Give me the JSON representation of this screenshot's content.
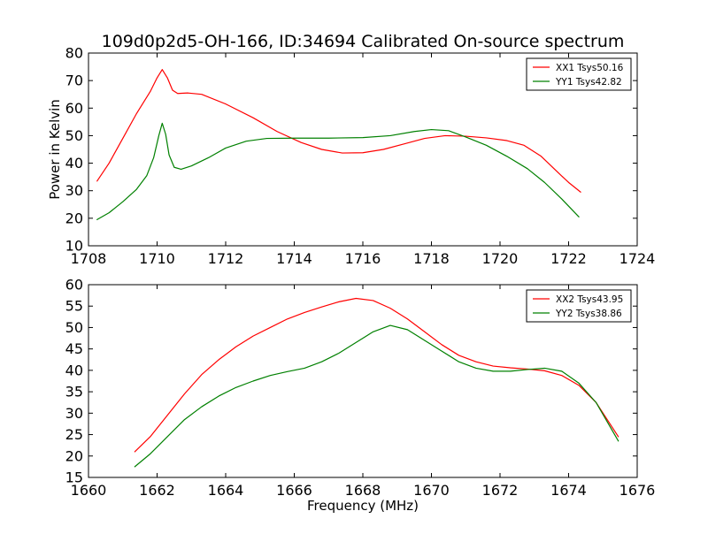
{
  "title": "109d0p2d5-OH-166, ID:34694 Calibrated On-source spectrum",
  "ylabel": "Power in Kelvin",
  "xlabel": "Frequency (MHz)",
  "colors": {
    "xx": "#ff0000",
    "yy": "#008000",
    "axis": "#000000"
  },
  "chart_data": [
    {
      "type": "line",
      "xlim": [
        1708,
        1724
      ],
      "ylim": [
        10,
        80
      ],
      "xticks": [
        1708,
        1710,
        1712,
        1714,
        1716,
        1718,
        1720,
        1722,
        1724
      ],
      "yticks": [
        10,
        20,
        30,
        40,
        50,
        60,
        70,
        80
      ],
      "ylabel": "Power in Kelvin",
      "xlabel": "",
      "legend_position": "top-right",
      "grid": false,
      "series": [
        {
          "name": "XX1 Tsys50.16",
          "color": "#ff0000",
          "x": [
            1708.25,
            1708.6,
            1709.0,
            1709.4,
            1709.8,
            1710.0,
            1710.15,
            1710.3,
            1710.45,
            1710.6,
            1710.9,
            1711.3,
            1712.0,
            1712.8,
            1713.5,
            1714.2,
            1714.8,
            1715.4,
            1716.0,
            1716.6,
            1717.2,
            1717.8,
            1718.4,
            1719.0,
            1719.6,
            1720.2,
            1720.7,
            1721.2,
            1721.7,
            1722.0,
            1722.35
          ],
          "y": [
            33.5,
            40.0,
            49.0,
            58.0,
            66.0,
            71.0,
            74.0,
            71.0,
            66.5,
            65.3,
            65.5,
            65.0,
            61.5,
            56.5,
            51.5,
            47.5,
            45.0,
            43.7,
            43.8,
            45.0,
            47.0,
            49.0,
            50.0,
            49.8,
            49.2,
            48.2,
            46.5,
            42.5,
            36.5,
            33.0,
            29.5
          ]
        },
        {
          "name": "YY1 Tsys42.82",
          "color": "#008000",
          "x": [
            1708.25,
            1708.6,
            1709.0,
            1709.4,
            1709.7,
            1709.9,
            1710.05,
            1710.15,
            1710.25,
            1710.35,
            1710.5,
            1710.7,
            1711.0,
            1711.5,
            1712.0,
            1712.6,
            1713.2,
            1714.0,
            1715.0,
            1716.0,
            1716.8,
            1717.5,
            1718.0,
            1718.5,
            1719.0,
            1719.6,
            1720.2,
            1720.8,
            1721.3,
            1721.8,
            1722.3
          ],
          "y": [
            19.5,
            22.0,
            26.0,
            30.5,
            35.5,
            42.0,
            50.0,
            54.5,
            50.5,
            43.0,
            38.5,
            37.8,
            39.0,
            42.0,
            45.5,
            48.0,
            49.0,
            49.1,
            49.1,
            49.3,
            50.0,
            51.5,
            52.2,
            51.8,
            49.5,
            46.5,
            42.5,
            38.0,
            33.0,
            27.0,
            20.5
          ]
        }
      ]
    },
    {
      "type": "line",
      "xlim": [
        1660,
        1676
      ],
      "ylim": [
        15,
        60
      ],
      "xticks": [
        1660,
        1662,
        1664,
        1666,
        1668,
        1670,
        1672,
        1674,
        1676
      ],
      "yticks": [
        15,
        20,
        25,
        30,
        35,
        40,
        45,
        50,
        55,
        60
      ],
      "ylabel": "",
      "xlabel": "Frequency (MHz)",
      "legend_position": "top-right",
      "grid": false,
      "series": [
        {
          "name": "XX2 Tsys43.95",
          "color": "#ff0000",
          "x": [
            1661.35,
            1661.8,
            1662.3,
            1662.8,
            1663.3,
            1663.8,
            1664.3,
            1664.8,
            1665.3,
            1665.8,
            1666.3,
            1666.8,
            1667.3,
            1667.8,
            1668.3,
            1668.8,
            1669.3,
            1669.8,
            1670.3,
            1670.8,
            1671.3,
            1671.8,
            1672.3,
            1672.8,
            1673.3,
            1673.8,
            1674.3,
            1674.8,
            1675.45
          ],
          "y": [
            21.0,
            24.5,
            29.5,
            34.5,
            39.0,
            42.5,
            45.5,
            48.0,
            50.0,
            52.0,
            53.5,
            54.8,
            56.0,
            56.8,
            56.3,
            54.5,
            52.0,
            49.0,
            46.0,
            43.5,
            42.0,
            41.0,
            40.6,
            40.3,
            39.9,
            38.8,
            36.5,
            32.5,
            24.5
          ]
        },
        {
          "name": "YY2 Tsys38.86",
          "color": "#008000",
          "x": [
            1661.35,
            1661.8,
            1662.3,
            1662.8,
            1663.3,
            1663.8,
            1664.3,
            1664.8,
            1665.3,
            1665.8,
            1666.3,
            1666.8,
            1667.3,
            1667.8,
            1668.3,
            1668.8,
            1669.3,
            1669.8,
            1670.3,
            1670.8,
            1671.3,
            1671.8,
            1672.3,
            1672.8,
            1673.3,
            1673.8,
            1674.3,
            1674.8,
            1675.45
          ],
          "y": [
            17.5,
            20.5,
            24.5,
            28.5,
            31.5,
            34.0,
            36.0,
            37.5,
            38.8,
            39.7,
            40.5,
            42.0,
            44.0,
            46.5,
            49.0,
            50.5,
            49.5,
            47.0,
            44.5,
            42.0,
            40.5,
            39.8,
            39.8,
            40.2,
            40.5,
            39.8,
            37.0,
            32.5,
            23.5
          ]
        }
      ]
    }
  ]
}
